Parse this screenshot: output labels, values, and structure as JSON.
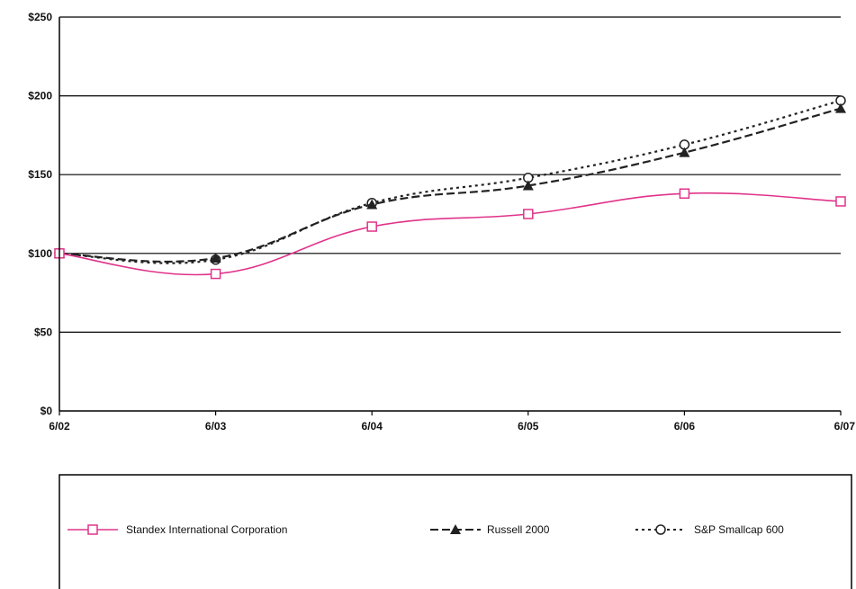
{
  "chart_data": {
    "type": "line",
    "categories": [
      "6/02",
      "6/03",
      "6/04",
      "6/05",
      "6/06",
      "6/07"
    ],
    "y_ticks": [
      "$0",
      "$50",
      "$100",
      "$150",
      "$200",
      "$250"
    ],
    "ylim": [
      0,
      250
    ],
    "grid": true,
    "legend_placement": "bottom",
    "series": [
      {
        "name": "Standex International Corporation",
        "values": [
          100,
          87,
          117,
          125,
          138,
          133
        ],
        "color": "#e0338a",
        "marker": "square-open",
        "line": "solid"
      },
      {
        "name": "Russell 2000",
        "values": [
          100,
          97,
          131,
          143,
          164,
          192
        ],
        "color": "#222222",
        "marker": "triangle-filled",
        "line": "dashed"
      },
      {
        "name": "S&P Smallcap 600",
        "values": [
          100,
          96,
          132,
          148,
          169,
          197
        ],
        "color": "#222222",
        "marker": "circle-open",
        "line": "dotted"
      }
    ]
  }
}
